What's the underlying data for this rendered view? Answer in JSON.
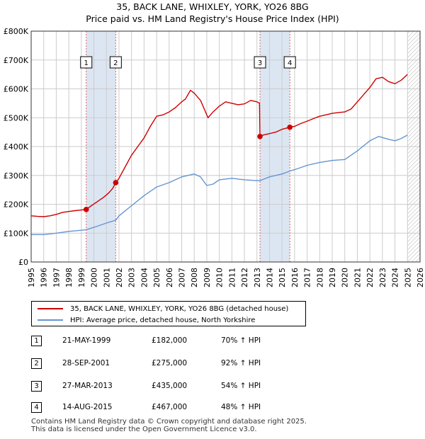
{
  "header": {
    "title_line1": "35, BACK LANE, WHIXLEY, YORK, YO26 8BG",
    "title_line2": "Price paid vs. HM Land Registry's House Price Index (HPI)"
  },
  "colors": {
    "property": "#cc0000",
    "hpi": "#6495d0",
    "shade": "#dce6f2",
    "grid": "#cccccc",
    "marker_line": "#e06060"
  },
  "legend": {
    "property_label": "35, BACK LANE, WHIXLEY, YORK, YO26 8BG (detached house)",
    "hpi_label": "HPI: Average price, detached house, North Yorkshire"
  },
  "sales": [
    {
      "num": "1",
      "date": "21-MAY-1999",
      "price": "£182,000",
      "hpi_change": "70% ↑ HPI"
    },
    {
      "num": "2",
      "date": "28-SEP-2001",
      "price": "£275,000",
      "hpi_change": "92% ↑ HPI"
    },
    {
      "num": "3",
      "date": "27-MAR-2013",
      "price": "£435,000",
      "hpi_change": "54% ↑ HPI"
    },
    {
      "num": "4",
      "date": "14-AUG-2015",
      "price": "£467,000",
      "hpi_change": "48% ↑ HPI"
    }
  ],
  "footer": {
    "line1": "Contains HM Land Registry data © Crown copyright and database right 2025.",
    "line2": "This data is licensed under the Open Government Licence v3.0."
  },
  "chart_data": {
    "type": "line",
    "title": "35, BACK LANE, WHIXLEY, YORK, YO26 8BG",
    "subtitle": "Price paid vs. HM Land Registry's House Price Index (HPI)",
    "xlabel": "",
    "ylabel": "",
    "xlim": [
      1995,
      2026
    ],
    "ylim": [
      0,
      800000
    ],
    "grid": true,
    "legend_position": "below",
    "y_ticks": [
      {
        "value": 0,
        "label": "£0"
      },
      {
        "value": 100000,
        "label": "£100K"
      },
      {
        "value": 200000,
        "label": "£200K"
      },
      {
        "value": 300000,
        "label": "£300K"
      },
      {
        "value": 400000,
        "label": "£400K"
      },
      {
        "value": 500000,
        "label": "£500K"
      },
      {
        "value": 600000,
        "label": "£600K"
      },
      {
        "value": 700000,
        "label": "£700K"
      },
      {
        "value": 800000,
        "label": "£800K"
      }
    ],
    "x_ticks": [
      "1995",
      "1996",
      "1997",
      "1998",
      "1999",
      "2000",
      "2001",
      "2002",
      "2003",
      "2004",
      "2005",
      "2006",
      "2007",
      "2008",
      "2009",
      "2010",
      "2011",
      "2012",
      "2013",
      "2014",
      "2015",
      "2016",
      "2017",
      "2018",
      "2019",
      "2020",
      "2021",
      "2022",
      "2023",
      "2024",
      "2025",
      "2026"
    ],
    "shaded_ranges": [
      [
        1999.39,
        2001.74
      ],
      [
        2013.24,
        2015.62
      ]
    ],
    "forecast_from": 2025.0,
    "sale_markers": [
      {
        "label": "1",
        "x": 1999.39,
        "y": 182000
      },
      {
        "label": "2",
        "x": 2001.74,
        "y": 275000
      },
      {
        "label": "3",
        "x": 2013.24,
        "y": 435000
      },
      {
        "label": "4",
        "x": 2015.62,
        "y": 467000
      }
    ],
    "series": [
      {
        "name": "35, BACK LANE, WHIXLEY, YORK, YO26 8BG (detached house)",
        "color": "#cc0000",
        "points": [
          [
            1995.0,
            160000
          ],
          [
            1995.5,
            158000
          ],
          [
            1996.0,
            157000
          ],
          [
            1996.5,
            160000
          ],
          [
            1997.0,
            165000
          ],
          [
            1997.5,
            172000
          ],
          [
            1998.0,
            175000
          ],
          [
            1998.5,
            178000
          ],
          [
            1999.0,
            180000
          ],
          [
            1999.39,
            182000
          ],
          [
            1999.8,
            195000
          ],
          [
            2000.3,
            210000
          ],
          [
            2000.8,
            225000
          ],
          [
            2001.2,
            240000
          ],
          [
            2001.5,
            255000
          ],
          [
            2001.74,
            275000
          ],
          [
            2002.0,
            290000
          ],
          [
            2002.5,
            330000
          ],
          [
            2003.0,
            370000
          ],
          [
            2003.5,
            400000
          ],
          [
            2004.0,
            430000
          ],
          [
            2004.5,
            470000
          ],
          [
            2005.0,
            505000
          ],
          [
            2005.5,
            510000
          ],
          [
            2006.0,
            520000
          ],
          [
            2006.5,
            535000
          ],
          [
            2007.0,
            555000
          ],
          [
            2007.3,
            565000
          ],
          [
            2007.7,
            595000
          ],
          [
            2008.0,
            585000
          ],
          [
            2008.5,
            560000
          ],
          [
            2008.8,
            530000
          ],
          [
            2009.1,
            500000
          ],
          [
            2009.5,
            520000
          ],
          [
            2010.0,
            540000
          ],
          [
            2010.5,
            555000
          ],
          [
            2011.0,
            550000
          ],
          [
            2011.5,
            545000
          ],
          [
            2012.0,
            548000
          ],
          [
            2012.5,
            560000
          ],
          [
            2013.0,
            555000
          ],
          [
            2013.2,
            550000
          ],
          [
            2013.24,
            435000
          ],
          [
            2013.5,
            440000
          ],
          [
            2014.0,
            445000
          ],
          [
            2014.5,
            450000
          ],
          [
            2015.0,
            460000
          ],
          [
            2015.62,
            467000
          ],
          [
            2016.0,
            470000
          ],
          [
            2016.5,
            480000
          ],
          [
            2017.0,
            488000
          ],
          [
            2017.5,
            497000
          ],
          [
            2018.0,
            505000
          ],
          [
            2018.5,
            510000
          ],
          [
            2019.0,
            515000
          ],
          [
            2019.5,
            518000
          ],
          [
            2020.0,
            520000
          ],
          [
            2020.5,
            530000
          ],
          [
            2021.0,
            555000
          ],
          [
            2021.5,
            580000
          ],
          [
            2022.0,
            605000
          ],
          [
            2022.5,
            635000
          ],
          [
            2023.0,
            640000
          ],
          [
            2023.5,
            625000
          ],
          [
            2024.0,
            618000
          ],
          [
            2024.5,
            630000
          ],
          [
            2025.0,
            650000
          ]
        ]
      },
      {
        "name": "HPI: Average price, detached house, North Yorkshire",
        "color": "#6495d0",
        "points": [
          [
            1995.0,
            95000
          ],
          [
            1996.0,
            95000
          ],
          [
            1997.0,
            100000
          ],
          [
            1998.0,
            106000
          ],
          [
            1999.0,
            110000
          ],
          [
            1999.39,
            112000
          ],
          [
            2000.0,
            120000
          ],
          [
            2001.0,
            135000
          ],
          [
            2001.74,
            145000
          ],
          [
            2002.0,
            160000
          ],
          [
            2003.0,
            195000
          ],
          [
            2004.0,
            230000
          ],
          [
            2005.0,
            260000
          ],
          [
            2006.0,
            275000
          ],
          [
            2007.0,
            295000
          ],
          [
            2008.0,
            305000
          ],
          [
            2008.5,
            295000
          ],
          [
            2009.0,
            265000
          ],
          [
            2009.5,
            270000
          ],
          [
            2010.0,
            285000
          ],
          [
            2011.0,
            290000
          ],
          [
            2012.0,
            285000
          ],
          [
            2013.0,
            282000
          ],
          [
            2013.24,
            282000
          ],
          [
            2014.0,
            295000
          ],
          [
            2015.0,
            305000
          ],
          [
            2015.62,
            315000
          ],
          [
            2016.0,
            320000
          ],
          [
            2017.0,
            335000
          ],
          [
            2018.0,
            345000
          ],
          [
            2019.0,
            352000
          ],
          [
            2020.0,
            355000
          ],
          [
            2021.0,
            385000
          ],
          [
            2022.0,
            420000
          ],
          [
            2022.7,
            435000
          ],
          [
            2023.5,
            425000
          ],
          [
            2024.0,
            420000
          ],
          [
            2024.5,
            428000
          ],
          [
            2025.0,
            440000
          ]
        ]
      }
    ]
  }
}
